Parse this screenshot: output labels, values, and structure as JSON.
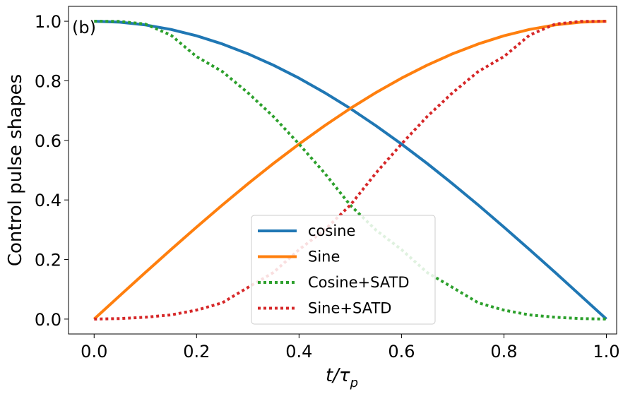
{
  "chart_data": {
    "type": "line",
    "panel_label": "(b)",
    "xlabel_main": "t/τ",
    "xlabel_sub": "p",
    "ylabel": "Control pulse shapes",
    "xlim": [
      -0.05,
      1.02
    ],
    "ylim": [
      -0.05,
      1.05
    ],
    "xticks": [
      0.0,
      0.2,
      0.4,
      0.6,
      0.8,
      1.0
    ],
    "xtick_labels": [
      "0.0",
      "0.2",
      "0.4",
      "0.6",
      "0.8",
      "1.0"
    ],
    "yticks": [
      0.0,
      0.2,
      0.4,
      0.6,
      0.8,
      1.0
    ],
    "ytick_labels": [
      "0.0",
      "0.2",
      "0.4",
      "0.6",
      "0.8",
      "1.0"
    ],
    "legend_position": "lower-center",
    "x": [
      0.0,
      0.05,
      0.1,
      0.15,
      0.2,
      0.25,
      0.3,
      0.35,
      0.4,
      0.45,
      0.5,
      0.55,
      0.6,
      0.65,
      0.7,
      0.75,
      0.8,
      0.85,
      0.9,
      0.95,
      1.0
    ],
    "series": [
      {
        "name": "cosine",
        "color": "#1f77b4",
        "style": "solid",
        "values": [
          1.0,
          0.9969,
          0.9877,
          0.9724,
          0.9511,
          0.9239,
          0.891,
          0.8526,
          0.809,
          0.7604,
          0.7071,
          0.6494,
          0.5878,
          0.5225,
          0.454,
          0.3827,
          0.309,
          0.2334,
          0.1564,
          0.0785,
          0.0
        ]
      },
      {
        "name": "Sine",
        "color": "#ff7f0e",
        "style": "solid",
        "values": [
          0.0,
          0.0785,
          0.1564,
          0.2334,
          0.309,
          0.3827,
          0.454,
          0.5225,
          0.5878,
          0.6494,
          0.7071,
          0.7604,
          0.809,
          0.8526,
          0.891,
          0.9239,
          0.9511,
          0.9724,
          0.9877,
          0.9969,
          1.0
        ]
      },
      {
        "name": "Cosine+SATD",
        "color": "#2ca02c",
        "style": "dotted",
        "values": [
          1.0,
          0.9994,
          0.9904,
          0.9532,
          0.8812,
          0.8315,
          0.7604,
          0.68,
          0.5878,
          0.49,
          0.3827,
          0.2992,
          0.2334,
          0.1564,
          0.1061,
          0.0545,
          0.0302,
          0.0141,
          0.0061,
          0.0016,
          0.0
        ]
      },
      {
        "name": "Sine+SATD",
        "color": "#d62728",
        "style": "dotted",
        "values": [
          0.0,
          0.0016,
          0.0061,
          0.0141,
          0.0302,
          0.0545,
          0.1061,
          0.1564,
          0.2334,
          0.2992,
          0.3827,
          0.49,
          0.5878,
          0.68,
          0.7604,
          0.8315,
          0.8812,
          0.9532,
          0.9904,
          0.9994,
          1.0
        ]
      }
    ]
  }
}
